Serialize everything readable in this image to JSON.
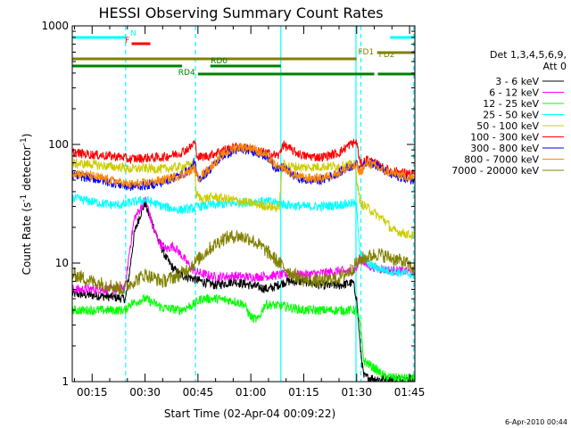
{
  "chart_data": {
    "type": "line",
    "title": "HESSI Observing Summary Count Rates",
    "xlabel": "Start Time (02-Apr-04 00:09:22)",
    "ylabel_main": "Count Rate (s",
    "ylabel_sup1": "-1",
    "ylabel_mid": " detector",
    "ylabel_sup2": "-1",
    "ylabel_end": ")",
    "yscale": "log",
    "ylim": [
      1,
      1000
    ],
    "xlim_minutes": [
      9.37,
      106.5
    ],
    "y_ticks": [
      {
        "value": 1,
        "label": "1"
      },
      {
        "value": 10,
        "label": "10"
      },
      {
        "value": 100,
        "label": "100"
      },
      {
        "value": 1000,
        "label": "1000"
      }
    ],
    "x_ticks": [
      {
        "minute": 15,
        "label": "00:15"
      },
      {
        "minute": 30,
        "label": "00:30"
      },
      {
        "minute": 45,
        "label": "00:45"
      },
      {
        "minute": 60,
        "label": "01:00"
      },
      {
        "minute": 75,
        "label": "01:15"
      },
      {
        "minute": 90,
        "label": "01:30"
      },
      {
        "minute": 105,
        "label": "01:45"
      }
    ],
    "legend_header": [
      "Det 1,3,4,5,6,9,",
      "Att 0"
    ],
    "legend_position": "right",
    "timestamp": "6-Apr-2010 00:44",
    "series": [
      {
        "name": "3 - 6 keV",
        "color": "#000000",
        "points": [
          [
            10,
            5.5
          ],
          [
            20,
            5.2
          ],
          [
            24.5,
            5
          ],
          [
            25.5,
            8
          ],
          [
            27,
            18
          ],
          [
            28.5,
            25
          ],
          [
            30,
            32
          ],
          [
            31,
            26
          ],
          [
            32,
            22
          ],
          [
            34,
            15
          ],
          [
            36,
            11
          ],
          [
            38,
            9
          ],
          [
            40,
            8
          ],
          [
            43,
            7.5
          ],
          [
            46,
            7
          ],
          [
            50,
            6.5
          ],
          [
            55,
            7
          ],
          [
            60,
            6.5
          ],
          [
            65,
            6
          ],
          [
            70,
            7
          ],
          [
            75,
            7
          ],
          [
            80,
            6.5
          ],
          [
            85,
            6.5
          ],
          [
            89,
            6.8
          ],
          [
            90,
            5
          ],
          [
            91,
            2
          ],
          [
            92,
            1.1
          ],
          [
            96,
            1.05
          ],
          [
            100,
            1.05
          ],
          [
            106,
            1.05
          ]
        ]
      },
      {
        "name": "6 - 12 keV",
        "color": "#ff00ff",
        "points": [
          [
            10,
            6
          ],
          [
            23,
            6
          ],
          [
            24.5,
            6.5
          ],
          [
            25.5,
            12
          ],
          [
            27,
            24
          ],
          [
            28.5,
            28
          ],
          [
            30,
            35
          ],
          [
            31,
            28
          ],
          [
            32,
            21
          ],
          [
            34,
            15
          ],
          [
            36,
            13
          ],
          [
            38,
            14
          ],
          [
            40,
            12
          ],
          [
            42,
            10
          ],
          [
            44,
            8.5
          ],
          [
            47,
            8
          ],
          [
            50,
            7.6
          ],
          [
            55,
            7.8
          ],
          [
            60,
            7.6
          ],
          [
            65,
            7.8
          ],
          [
            70,
            8
          ],
          [
            75,
            8
          ],
          [
            80,
            8.2
          ],
          [
            85,
            8.6
          ],
          [
            88,
            8.4
          ],
          [
            90,
            9
          ],
          [
            91,
            11
          ],
          [
            93,
            9.5
          ],
          [
            98,
            8.8
          ],
          [
            106,
            8.4
          ]
        ]
      },
      {
        "name": "12 - 25 keV",
        "color": "#00ff00",
        "points": [
          [
            10,
            4
          ],
          [
            20,
            4
          ],
          [
            24.5,
            4
          ],
          [
            25.5,
            4.5
          ],
          [
            30,
            5
          ],
          [
            35,
            4.2
          ],
          [
            40,
            4
          ],
          [
            44,
            4.5
          ],
          [
            46,
            5
          ],
          [
            50,
            5
          ],
          [
            55,
            4.8
          ],
          [
            58,
            4.5
          ],
          [
            60,
            3.5
          ],
          [
            62,
            3.3
          ],
          [
            64,
            4.5
          ],
          [
            70,
            4.3
          ],
          [
            75,
            4
          ],
          [
            80,
            4
          ],
          [
            85,
            4
          ],
          [
            88,
            4
          ],
          [
            90,
            4
          ],
          [
            91,
            3
          ],
          [
            92,
            1.5
          ],
          [
            95,
            1.3
          ],
          [
            98,
            1.1
          ],
          [
            106,
            1.05
          ]
        ]
      },
      {
        "name": "25 - 50 keV",
        "color": "#00ffff",
        "points": [
          [
            10,
            35
          ],
          [
            15,
            33
          ],
          [
            20,
            31
          ],
          [
            24,
            31
          ],
          [
            25,
            32
          ],
          [
            30,
            34
          ],
          [
            35,
            30
          ],
          [
            40,
            28
          ],
          [
            44,
            29
          ],
          [
            45,
            30
          ],
          [
            50,
            31
          ],
          [
            55,
            32
          ],
          [
            60,
            33
          ],
          [
            65,
            33
          ],
          [
            68,
            32
          ],
          [
            70,
            31
          ],
          [
            75,
            30
          ],
          [
            80,
            30
          ],
          [
            85,
            31
          ],
          [
            89,
            32
          ],
          [
            90,
            30
          ],
          [
            91,
            12
          ],
          [
            93,
            10
          ],
          [
            96,
            9
          ],
          [
            100,
            8.5
          ],
          [
            106,
            8
          ]
        ]
      },
      {
        "name": "50 - 100 keV",
        "color": "#cccc00",
        "points": [
          [
            10,
            69
          ],
          [
            15,
            68
          ],
          [
            20,
            65
          ],
          [
            24,
            64
          ],
          [
            25,
            62
          ],
          [
            30,
            63
          ],
          [
            35,
            62
          ],
          [
            40,
            65
          ],
          [
            44,
            68
          ],
          [
            44.5,
            38
          ],
          [
            46,
            35
          ],
          [
            50,
            36
          ],
          [
            55,
            34
          ],
          [
            60,
            32
          ],
          [
            65,
            30
          ],
          [
            68,
            29
          ],
          [
            69,
            68
          ],
          [
            72,
            65
          ],
          [
            75,
            64
          ],
          [
            80,
            65
          ],
          [
            85,
            66
          ],
          [
            88,
            67
          ],
          [
            89.5,
            68
          ],
          [
            91,
            32
          ],
          [
            94,
            28
          ],
          [
            96,
            25
          ],
          [
            98,
            23
          ],
          [
            100,
            19
          ],
          [
            106,
            17
          ]
        ]
      },
      {
        "name": "100 - 300 keV",
        "color": "#ff0000",
        "points": [
          [
            10,
            85
          ],
          [
            15,
            82
          ],
          [
            20,
            80
          ],
          [
            24,
            78
          ],
          [
            25,
            75
          ],
          [
            30,
            77
          ],
          [
            35,
            78
          ],
          [
            40,
            85
          ],
          [
            43,
            95
          ],
          [
            44,
            105
          ],
          [
            45,
            78
          ],
          [
            48,
            80
          ],
          [
            52,
            90
          ],
          [
            56,
            95
          ],
          [
            60,
            92
          ],
          [
            64,
            85
          ],
          [
            68,
            80
          ],
          [
            69,
            100
          ],
          [
            72,
            88
          ],
          [
            75,
            80
          ],
          [
            80,
            78
          ],
          [
            85,
            85
          ],
          [
            88,
            100
          ],
          [
            90,
            105
          ],
          [
            91,
            68
          ],
          [
            93,
            75
          ],
          [
            95,
            70
          ],
          [
            98,
            62
          ],
          [
            100,
            60
          ],
          [
            106,
            56
          ]
        ]
      },
      {
        "name": "300 - 800 keV",
        "color": "#0000ff",
        "points": [
          [
            10,
            55
          ],
          [
            15,
            52
          ],
          [
            20,
            48
          ],
          [
            24,
            45
          ],
          [
            25,
            44
          ],
          [
            30,
            45
          ],
          [
            35,
            48
          ],
          [
            40,
            55
          ],
          [
            43,
            62
          ],
          [
            44,
            72
          ],
          [
            45,
            50
          ],
          [
            48,
            60
          ],
          [
            52,
            80
          ],
          [
            56,
            90
          ],
          [
            60,
            90
          ],
          [
            64,
            80
          ],
          [
            68,
            60
          ],
          [
            69,
            65
          ],
          [
            72,
            55
          ],
          [
            75,
            50
          ],
          [
            80,
            50
          ],
          [
            85,
            58
          ],
          [
            88,
            65
          ],
          [
            90,
            68
          ],
          [
            91,
            60
          ],
          [
            93,
            72
          ],
          [
            95,
            68
          ],
          [
            98,
            60
          ],
          [
            100,
            55
          ],
          [
            106,
            50
          ]
        ]
      },
      {
        "name": "800 - 7000 keV",
        "color": "#ff8800",
        "points": [
          [
            10,
            58
          ],
          [
            15,
            54
          ],
          [
            20,
            50
          ],
          [
            24,
            47
          ],
          [
            25,
            46
          ],
          [
            30,
            47
          ],
          [
            35,
            50
          ],
          [
            40,
            55
          ],
          [
            43,
            60
          ],
          [
            44,
            64
          ],
          [
            45,
            52
          ],
          [
            48,
            62
          ],
          [
            52,
            82
          ],
          [
            56,
            95
          ],
          [
            60,
            94
          ],
          [
            64,
            82
          ],
          [
            68,
            62
          ],
          [
            69,
            64
          ],
          [
            72,
            56
          ],
          [
            75,
            52
          ],
          [
            80,
            52
          ],
          [
            85,
            58
          ],
          [
            88,
            64
          ],
          [
            90,
            66
          ],
          [
            91,
            58
          ],
          [
            93,
            70
          ],
          [
            95,
            66
          ],
          [
            98,
            60
          ],
          [
            100,
            57
          ],
          [
            106,
            52
          ]
        ]
      },
      {
        "name": "7000 - 20000 keV",
        "color": "#808000",
        "points": [
          [
            10,
            8
          ],
          [
            15,
            7
          ],
          [
            20,
            6.5
          ],
          [
            24,
            6
          ],
          [
            25,
            6.5
          ],
          [
            30,
            8
          ],
          [
            35,
            7
          ],
          [
            40,
            8
          ],
          [
            44,
            10
          ],
          [
            48,
            13
          ],
          [
            52,
            16
          ],
          [
            56,
            17
          ],
          [
            60,
            16
          ],
          [
            64,
            13
          ],
          [
            68,
            10
          ],
          [
            72,
            8
          ],
          [
            75,
            7.2
          ],
          [
            80,
            7
          ],
          [
            85,
            7.5
          ],
          [
            88,
            8.5
          ],
          [
            90,
            10
          ],
          [
            92,
            11
          ],
          [
            96,
            12
          ],
          [
            100,
            11
          ],
          [
            104,
            10
          ],
          [
            106,
            9
          ]
        ]
      }
    ],
    "flag_bars": [
      {
        "label": "N",
        "color": "#00ffff",
        "segments": [
          [
            9.37,
            24.5
          ],
          [
            99.5,
            106.5
          ]
        ]
      },
      {
        "label": "F",
        "color": "#ff0000",
        "segments": [
          [
            26.2,
            31.5
          ]
        ]
      },
      {
        "label": "FD1",
        "color": "#808000",
        "segments": [
          [
            9.37,
            90
          ]
        ]
      },
      {
        "label": "FD2",
        "color": "#808000",
        "segments": [
          [
            95.8,
            106.5
          ]
        ]
      },
      {
        "label": "RD0",
        "color": "#008000",
        "segments": [
          [
            9.37,
            40.5
          ],
          [
            48.5,
            68.5
          ]
        ]
      },
      {
        "label": "RD4",
        "color": "#008000",
        "segments": [
          [
            45,
            68.5
          ],
          [
            68.5,
            95
          ],
          [
            96,
            106.5
          ]
        ]
      }
    ],
    "vertical_markers": [
      {
        "minute": 24.5,
        "color": "#00ffff",
        "style": "dashed"
      },
      {
        "minute": 44.3,
        "color": "#00ffff",
        "style": "dashed"
      },
      {
        "minute": 68.5,
        "color": "#00ffff",
        "style": "solid"
      },
      {
        "minute": 89.8,
        "color": "#00ffff",
        "style": "solid"
      },
      {
        "minute": 91.2,
        "color": "#00ffff",
        "style": "dashed"
      },
      {
        "minute": 106.2,
        "color": "#00ffff",
        "style": "dashed"
      }
    ]
  }
}
